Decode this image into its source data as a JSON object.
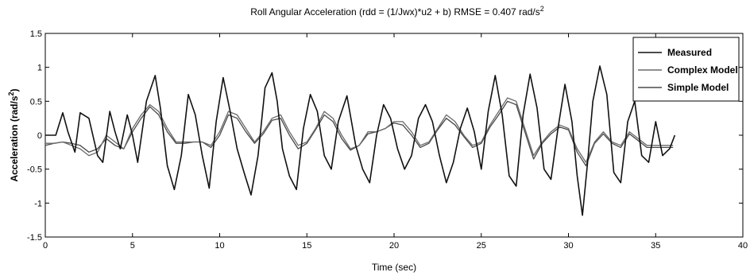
{
  "chart_data": {
    "type": "line",
    "title": "Roll Angular Acceleration (rdd = (1/Jwx)*u2 + b) RMSE = 0.407 rad/s",
    "title_superscript": "2",
    "xlabel": "Time (sec)",
    "ylabel": "Acceleration (rad/s",
    "ylabel_superscript": "2",
    "ylabel_suffix": ")",
    "xlim": [
      0,
      40
    ],
    "ylim": [
      -1.5,
      1.5
    ],
    "xticks": [
      0,
      5,
      10,
      15,
      20,
      25,
      30,
      35,
      40
    ],
    "yticks": [
      -1.5,
      -1,
      -0.5,
      0,
      0.5,
      1,
      1.5
    ],
    "xtick_labels": [
      "0",
      "5",
      "10",
      "15",
      "20",
      "25",
      "30",
      "35",
      "40"
    ],
    "ytick_labels": [
      "-1.5",
      "-1",
      "-0.5",
      "0",
      "0.5",
      "1",
      "1.5"
    ],
    "grid": false,
    "legend_position": "top-right",
    "series": [
      {
        "name": "Measured",
        "color": "#111111",
        "x": [
          0,
          0.6,
          1.0,
          1.3,
          1.7,
          2.0,
          2.5,
          3.0,
          3.3,
          3.7,
          4.0,
          4.3,
          4.7,
          5.0,
          5.3,
          5.8,
          6.3,
          6.6,
          7.0,
          7.4,
          7.8,
          8.2,
          8.6,
          9.0,
          9.4,
          9.8,
          10.2,
          10.6,
          11.0,
          11.4,
          11.8,
          12.2,
          12.6,
          13.0,
          13.3,
          13.6,
          14.0,
          14.4,
          14.8,
          15.2,
          15.6,
          16.0,
          16.4,
          16.8,
          17.3,
          17.8,
          18.2,
          18.6,
          19.0,
          19.4,
          19.8,
          20.2,
          20.6,
          21.0,
          21.4,
          21.8,
          22.2,
          22.6,
          23.0,
          23.4,
          23.8,
          24.2,
          24.6,
          25.0,
          25.4,
          25.8,
          26.2,
          26.6,
          27.0,
          27.4,
          27.8,
          28.2,
          28.6,
          29.0,
          29.4,
          29.8,
          30.2,
          30.5,
          30.8,
          31.1,
          31.4,
          31.8,
          32.2,
          32.6,
          33.0,
          33.4,
          33.8,
          34.2,
          34.6,
          35.0,
          35.4,
          35.8,
          36.1
        ],
        "y": [
          0.0,
          0.0,
          0.33,
          0.05,
          -0.25,
          0.33,
          0.25,
          -0.3,
          -0.4,
          0.35,
          0.05,
          -0.2,
          0.3,
          0.0,
          -0.4,
          0.5,
          0.88,
          0.4,
          -0.45,
          -0.8,
          -0.3,
          0.6,
          0.3,
          -0.3,
          -0.78,
          0.2,
          0.85,
          0.35,
          -0.2,
          -0.55,
          -0.88,
          -0.3,
          0.7,
          0.92,
          0.5,
          -0.2,
          -0.6,
          -0.8,
          0.1,
          0.6,
          0.35,
          -0.3,
          -0.5,
          0.2,
          0.58,
          -0.15,
          -0.5,
          -0.7,
          0.0,
          0.45,
          0.25,
          -0.2,
          -0.5,
          -0.3,
          0.25,
          0.45,
          0.2,
          -0.3,
          -0.7,
          -0.4,
          0.1,
          0.4,
          0.05,
          -0.5,
          0.35,
          0.88,
          0.3,
          -0.6,
          -0.75,
          0.3,
          0.9,
          0.4,
          -0.5,
          -0.65,
          0.1,
          0.75,
          0.2,
          -0.6,
          -1.18,
          -0.4,
          0.5,
          1.02,
          0.6,
          -0.55,
          -0.7,
          0.2,
          0.5,
          -0.3,
          -0.4,
          0.2,
          -0.3,
          -0.2,
          0.0
        ]
      },
      {
        "name": "Complex Model",
        "color": "#6a6a6a",
        "x": [
          0,
          0.5,
          1.0,
          1.5,
          2.0,
          2.5,
          3.0,
          3.5,
          4.0,
          4.5,
          5.0,
          5.5,
          6.0,
          6.5,
          7.0,
          7.5,
          8.0,
          8.5,
          9.0,
          9.5,
          10.0,
          10.5,
          11.0,
          11.5,
          12.0,
          12.5,
          13.0,
          13.5,
          14.0,
          14.5,
          15.0,
          15.5,
          16.0,
          16.5,
          17.0,
          17.5,
          18.0,
          18.5,
          19.0,
          19.5,
          20.0,
          20.5,
          21.0,
          21.5,
          22.0,
          22.5,
          23.0,
          23.5,
          24.0,
          24.5,
          25.0,
          25.5,
          26.0,
          26.5,
          27.0,
          27.5,
          28.0,
          28.5,
          29.0,
          29.5,
          30.0,
          30.5,
          31.0,
          31.5,
          32.0,
          32.5,
          33.0,
          33.5,
          34.0,
          34.5,
          35.0,
          35.5,
          36.0
        ],
        "y": [
          -0.12,
          -0.12,
          -0.1,
          -0.15,
          -0.2,
          -0.3,
          -0.25,
          0.0,
          -0.1,
          -0.2,
          0.1,
          0.3,
          0.45,
          0.35,
          0.1,
          -0.1,
          -0.1,
          -0.1,
          -0.1,
          -0.15,
          0.05,
          0.35,
          0.3,
          0.1,
          -0.1,
          0.05,
          0.25,
          0.3,
          0.05,
          -0.15,
          -0.1,
          0.1,
          0.35,
          0.25,
          0.0,
          -0.2,
          -0.15,
          0.05,
          0.05,
          0.1,
          0.2,
          0.2,
          0.05,
          -0.15,
          -0.1,
          0.1,
          0.3,
          0.2,
          0.0,
          -0.15,
          -0.1,
          0.15,
          0.35,
          0.55,
          0.5,
          0.1,
          -0.3,
          -0.1,
          0.05,
          0.15,
          0.1,
          -0.2,
          -0.4,
          -0.1,
          0.05,
          -0.1,
          -0.15,
          0.05,
          -0.05,
          -0.15,
          -0.15,
          -0.15,
          -0.15
        ]
      },
      {
        "name": "Simple Model",
        "color": "#4a4a4a",
        "x": [
          0,
          0.5,
          1.0,
          1.5,
          2.0,
          2.5,
          3.0,
          3.5,
          4.0,
          4.5,
          5.0,
          5.5,
          6.0,
          6.5,
          7.0,
          7.5,
          8.0,
          8.5,
          9.0,
          9.5,
          10.0,
          10.5,
          11.0,
          11.5,
          12.0,
          12.5,
          13.0,
          13.5,
          14.0,
          14.5,
          15.0,
          15.5,
          16.0,
          16.5,
          17.0,
          17.5,
          18.0,
          18.5,
          19.0,
          19.5,
          20.0,
          20.5,
          21.0,
          21.5,
          22.0,
          22.5,
          23.0,
          23.5,
          24.0,
          24.5,
          25.0,
          25.5,
          26.0,
          26.5,
          27.0,
          27.5,
          28.0,
          28.5,
          29.0,
          29.5,
          30.0,
          30.5,
          31.0,
          31.5,
          32.0,
          32.5,
          33.0,
          33.5,
          34.0,
          34.5,
          35.0,
          35.5,
          36.0
        ],
        "y": [
          -0.15,
          -0.12,
          -0.1,
          -0.12,
          -0.15,
          -0.25,
          -0.2,
          -0.05,
          -0.15,
          -0.2,
          0.05,
          0.25,
          0.42,
          0.3,
          0.05,
          -0.12,
          -0.12,
          -0.1,
          -0.1,
          -0.18,
          0.0,
          0.3,
          0.25,
          0.05,
          -0.12,
          0.02,
          0.22,
          0.25,
          0.0,
          -0.2,
          -0.12,
          0.08,
          0.3,
          0.2,
          -0.05,
          -0.22,
          -0.15,
          0.02,
          0.05,
          0.1,
          0.18,
          0.15,
          0.0,
          -0.18,
          -0.12,
          0.08,
          0.25,
          0.15,
          -0.02,
          -0.18,
          -0.12,
          0.12,
          0.3,
          0.5,
          0.45,
          0.05,
          -0.35,
          -0.12,
          0.02,
          0.12,
          0.08,
          -0.25,
          -0.45,
          -0.12,
          0.02,
          -0.12,
          -0.18,
          0.02,
          -0.08,
          -0.18,
          -0.18,
          -0.18,
          -0.18
        ]
      }
    ]
  }
}
